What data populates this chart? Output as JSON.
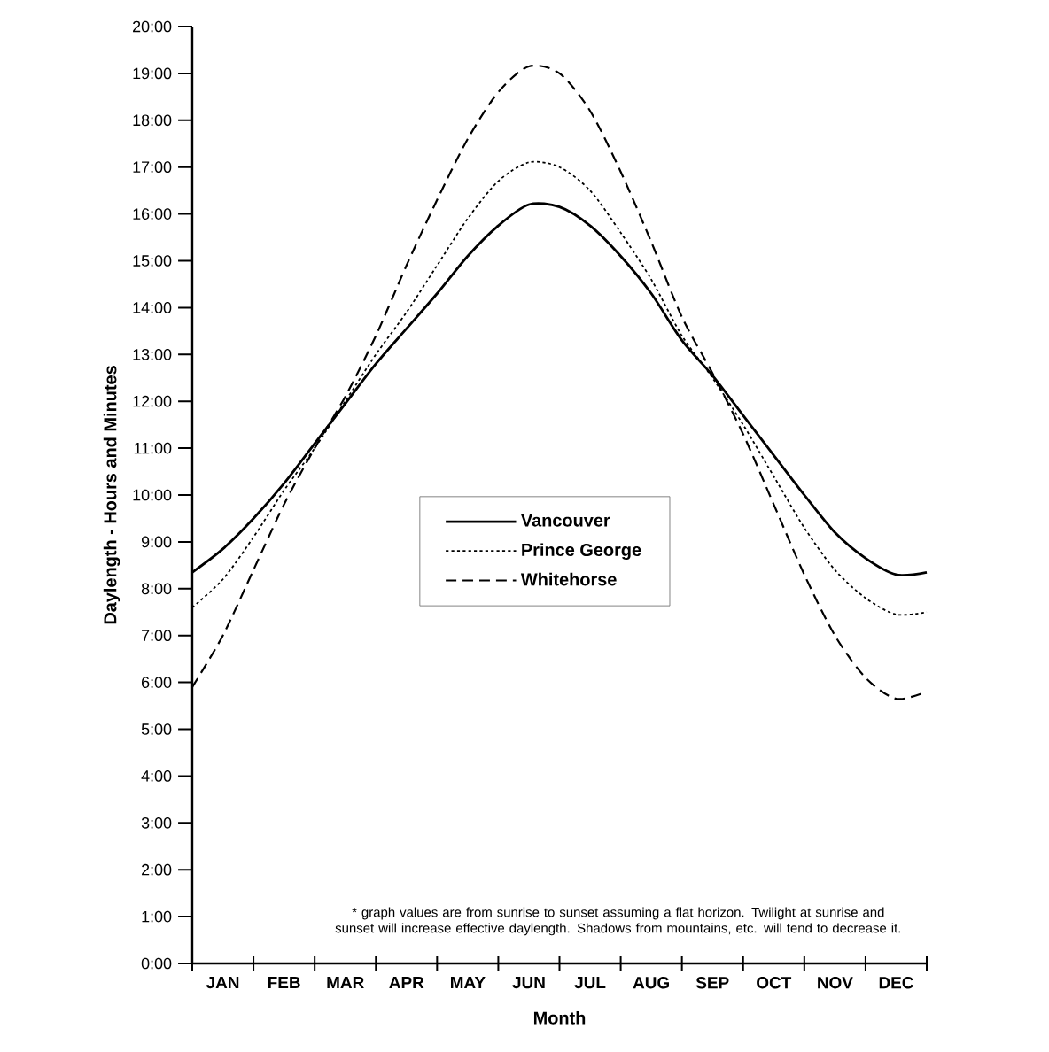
{
  "chart_data": {
    "type": "line",
    "xlabel": "Month",
    "ylabel": "Daylength - Hours and Minutes",
    "categories": [
      null,
      "JAN",
      null,
      "FEB",
      null,
      "MAR",
      null,
      "APR",
      null,
      "MAY",
      null,
      "JUN",
      null,
      "JUL",
      null,
      "AUG",
      null,
      "SEP",
      null,
      "OCT",
      null,
      "NOV",
      null,
      "DEC",
      null
    ],
    "series": [
      {
        "name": "Vancouver",
        "color": "#000000",
        "line_style": "solid",
        "values": [
          8.35,
          8.85,
          9.5,
          10.25,
          11.1,
          11.95,
          12.8,
          13.55,
          14.3,
          15.1,
          15.75,
          16.2,
          16.15,
          15.75,
          15.1,
          14.3,
          13.3,
          12.55,
          11.7,
          10.85,
          10.0,
          9.2,
          8.65,
          8.3,
          8.35
        ]
      },
      {
        "name": "Prince George",
        "color": "#000000",
        "line_style": "dotted",
        "values": [
          7.6,
          8.2,
          9.1,
          10.1,
          11.0,
          12.0,
          13.0,
          13.9,
          14.9,
          15.9,
          16.7,
          17.1,
          17.0,
          16.5,
          15.6,
          14.6,
          13.4,
          12.5,
          11.5,
          10.4,
          9.3,
          8.4,
          7.8,
          7.45,
          7.5
        ]
      },
      {
        "name": "Whitehorse",
        "color": "#000000",
        "line_style": "dashed",
        "values": [
          5.9,
          7.0,
          8.4,
          9.8,
          11.0,
          12.1,
          13.4,
          14.9,
          16.3,
          17.6,
          18.6,
          19.15,
          19.0,
          18.2,
          16.9,
          15.4,
          13.8,
          12.6,
          11.3,
          9.8,
          8.3,
          7.0,
          6.1,
          5.65,
          5.8
        ]
      }
    ],
    "ylim": [
      0,
      20
    ],
    "yticks": [
      {
        "value": 0,
        "label": "0:00"
      },
      {
        "value": 1,
        "label": "1:00"
      },
      {
        "value": 2,
        "label": "2:00"
      },
      {
        "value": 3,
        "label": "3:00"
      },
      {
        "value": 4,
        "label": "4:00"
      },
      {
        "value": 5,
        "label": "5:00"
      },
      {
        "value": 6,
        "label": "6:00"
      },
      {
        "value": 7,
        "label": "7:00"
      },
      {
        "value": 8,
        "label": "8:00"
      },
      {
        "value": 9,
        "label": "9:00"
      },
      {
        "value": 10,
        "label": "10:00"
      },
      {
        "value": 11,
        "label": "11:00"
      },
      {
        "value": 12,
        "label": "12:00"
      },
      {
        "value": 13,
        "label": "13:00"
      },
      {
        "value": 14,
        "label": "14:00"
      },
      {
        "value": 15,
        "label": "15:00"
      },
      {
        "value": 16,
        "label": "16:00"
      },
      {
        "value": 17,
        "label": "17:00"
      },
      {
        "value": 18,
        "label": "18:00"
      },
      {
        "value": 19,
        "label": "19:00"
      },
      {
        "value": 20,
        "label": "20:00"
      }
    ],
    "legend": "center",
    "annotations": [
      "* graph values are from sunrise to sunset assuming a flat horizon. Twilight at sunrise and sunset will increase effective daylength. Shadows from mountains, etc. will tend to decrease it."
    ]
  }
}
